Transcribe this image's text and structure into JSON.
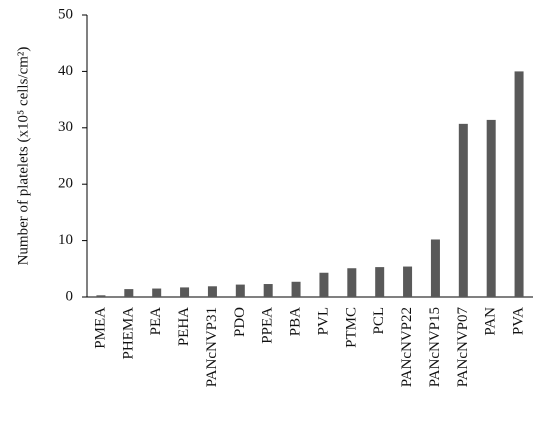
{
  "chart_data": {
    "type": "bar",
    "y_label": "Number of platelets (x10⁵ cells/cm²)",
    "categories": [
      "PMEA",
      "PHEMA",
      "PEA",
      "PEHA",
      "PANcNVP31",
      "PDO",
      "PPEA",
      "PBA",
      "PVL",
      "PTMC",
      "PCL",
      "PANcNVP22",
      "PANcNVP15",
      "PANcNVP07",
      "PAN",
      "PVA"
    ],
    "values": [
      0.3,
      1.4,
      1.5,
      1.7,
      1.9,
      2.2,
      2.3,
      2.7,
      4.3,
      5.1,
      5.3,
      5.4,
      10.2,
      30.7,
      31.4,
      40
    ],
    "color": "#595959",
    "ylim": [
      0,
      50
    ],
    "yticks": [
      0,
      10,
      20,
      30,
      40,
      50
    ],
    "grid": false
  }
}
